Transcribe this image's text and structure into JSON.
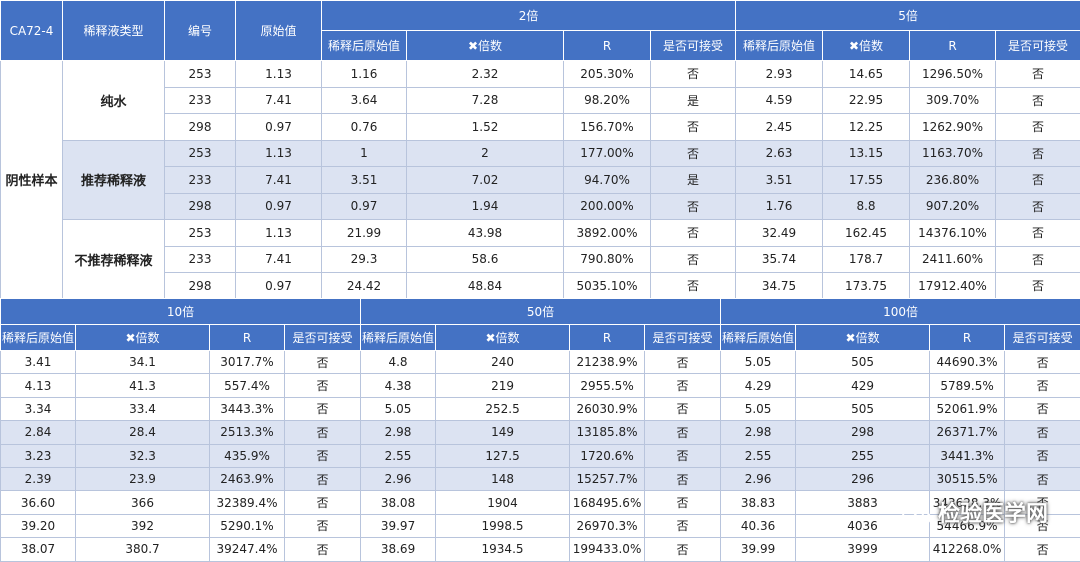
{
  "top": {
    "corner": "CA72-4",
    "col_type": "稀释液类型",
    "col_id": "编号",
    "col_orig": "原始值",
    "group_2x": "2倍",
    "group_5x": "5倍",
    "sub": [
      "稀释后原始值",
      "✖倍数",
      "R",
      "是否可接受"
    ],
    "sample_label": "阴性样本",
    "diluents": [
      "纯水",
      "推荐稀释液",
      "不推荐稀释液"
    ],
    "rows": [
      [
        "253",
        "1.13",
        "1.16",
        "2.32",
        "205.30%",
        "否",
        "2.93",
        "14.65",
        "1296.50%",
        "否"
      ],
      [
        "233",
        "7.41",
        "3.64",
        "7.28",
        "98.20%",
        "是",
        "4.59",
        "22.95",
        "309.70%",
        "否"
      ],
      [
        "298",
        "0.97",
        "0.76",
        "1.52",
        "156.70%",
        "否",
        "2.45",
        "12.25",
        "1262.90%",
        "否"
      ],
      [
        "253",
        "1.13",
        "1",
        "2",
        "177.00%",
        "否",
        "2.63",
        "13.15",
        "1163.70%",
        "否"
      ],
      [
        "233",
        "7.41",
        "3.51",
        "7.02",
        "94.70%",
        "是",
        "3.51",
        "17.55",
        "236.80%",
        "否"
      ],
      [
        "298",
        "0.97",
        "0.97",
        "1.94",
        "200.00%",
        "否",
        "1.76",
        "8.8",
        "907.20%",
        "否"
      ],
      [
        "253",
        "1.13",
        "21.99",
        "43.98",
        "3892.00%",
        "否",
        "32.49",
        "162.45",
        "14376.10%",
        "否"
      ],
      [
        "233",
        "7.41",
        "29.3",
        "58.6",
        "790.80%",
        "否",
        "35.74",
        "178.7",
        "2411.60%",
        "否"
      ],
      [
        "298",
        "0.97",
        "24.42",
        "48.84",
        "5035.10%",
        "否",
        "34.75",
        "173.75",
        "17912.40%",
        "否"
      ]
    ]
  },
  "bottom": {
    "group_10x": "10倍",
    "group_50x": "50倍",
    "group_100x": "100倍",
    "sub": [
      "稀释后原始值",
      "✖倍数",
      "R",
      "是否可接受"
    ],
    "rows": [
      [
        "3.41",
        "34.1",
        "3017.7%",
        "否",
        "4.8",
        "240",
        "21238.9%",
        "否",
        "5.05",
        "505",
        "44690.3%",
        "否"
      ],
      [
        "4.13",
        "41.3",
        "557.4%",
        "否",
        "4.38",
        "219",
        "2955.5%",
        "否",
        "4.29",
        "429",
        "5789.5%",
        "否"
      ],
      [
        "3.34",
        "33.4",
        "3443.3%",
        "否",
        "5.05",
        "252.5",
        "26030.9%",
        "否",
        "5.05",
        "505",
        "52061.9%",
        "否"
      ],
      [
        "2.84",
        "28.4",
        "2513.3%",
        "否",
        "2.98",
        "149",
        "13185.8%",
        "否",
        "2.98",
        "298",
        "26371.7%",
        "否"
      ],
      [
        "3.23",
        "32.3",
        "435.9%",
        "否",
        "2.55",
        "127.5",
        "1720.6%",
        "否",
        "2.55",
        "255",
        "3441.3%",
        "否"
      ],
      [
        "2.39",
        "23.9",
        "2463.9%",
        "否",
        "2.96",
        "148",
        "15257.7%",
        "否",
        "2.96",
        "296",
        "30515.5%",
        "否"
      ],
      [
        "36.60",
        "366",
        "32389.4%",
        "否",
        "38.08",
        "1904",
        "168495.6%",
        "否",
        "38.83",
        "3883",
        "343628.3%",
        "否"
      ],
      [
        "39.20",
        "392",
        "5290.1%",
        "否",
        "39.97",
        "1998.5",
        "26970.3%",
        "否",
        "40.36",
        "4036",
        "54466.9%",
        "否"
      ],
      [
        "38.07",
        "380.7",
        "39247.4%",
        "否",
        "38.69",
        "1934.5",
        "199433.0%",
        "否",
        "39.99",
        "3999",
        "412268.0%",
        "否"
      ]
    ]
  },
  "watermark": "检验医学网",
  "icons": {
    "watermark": "wechat-icon"
  }
}
